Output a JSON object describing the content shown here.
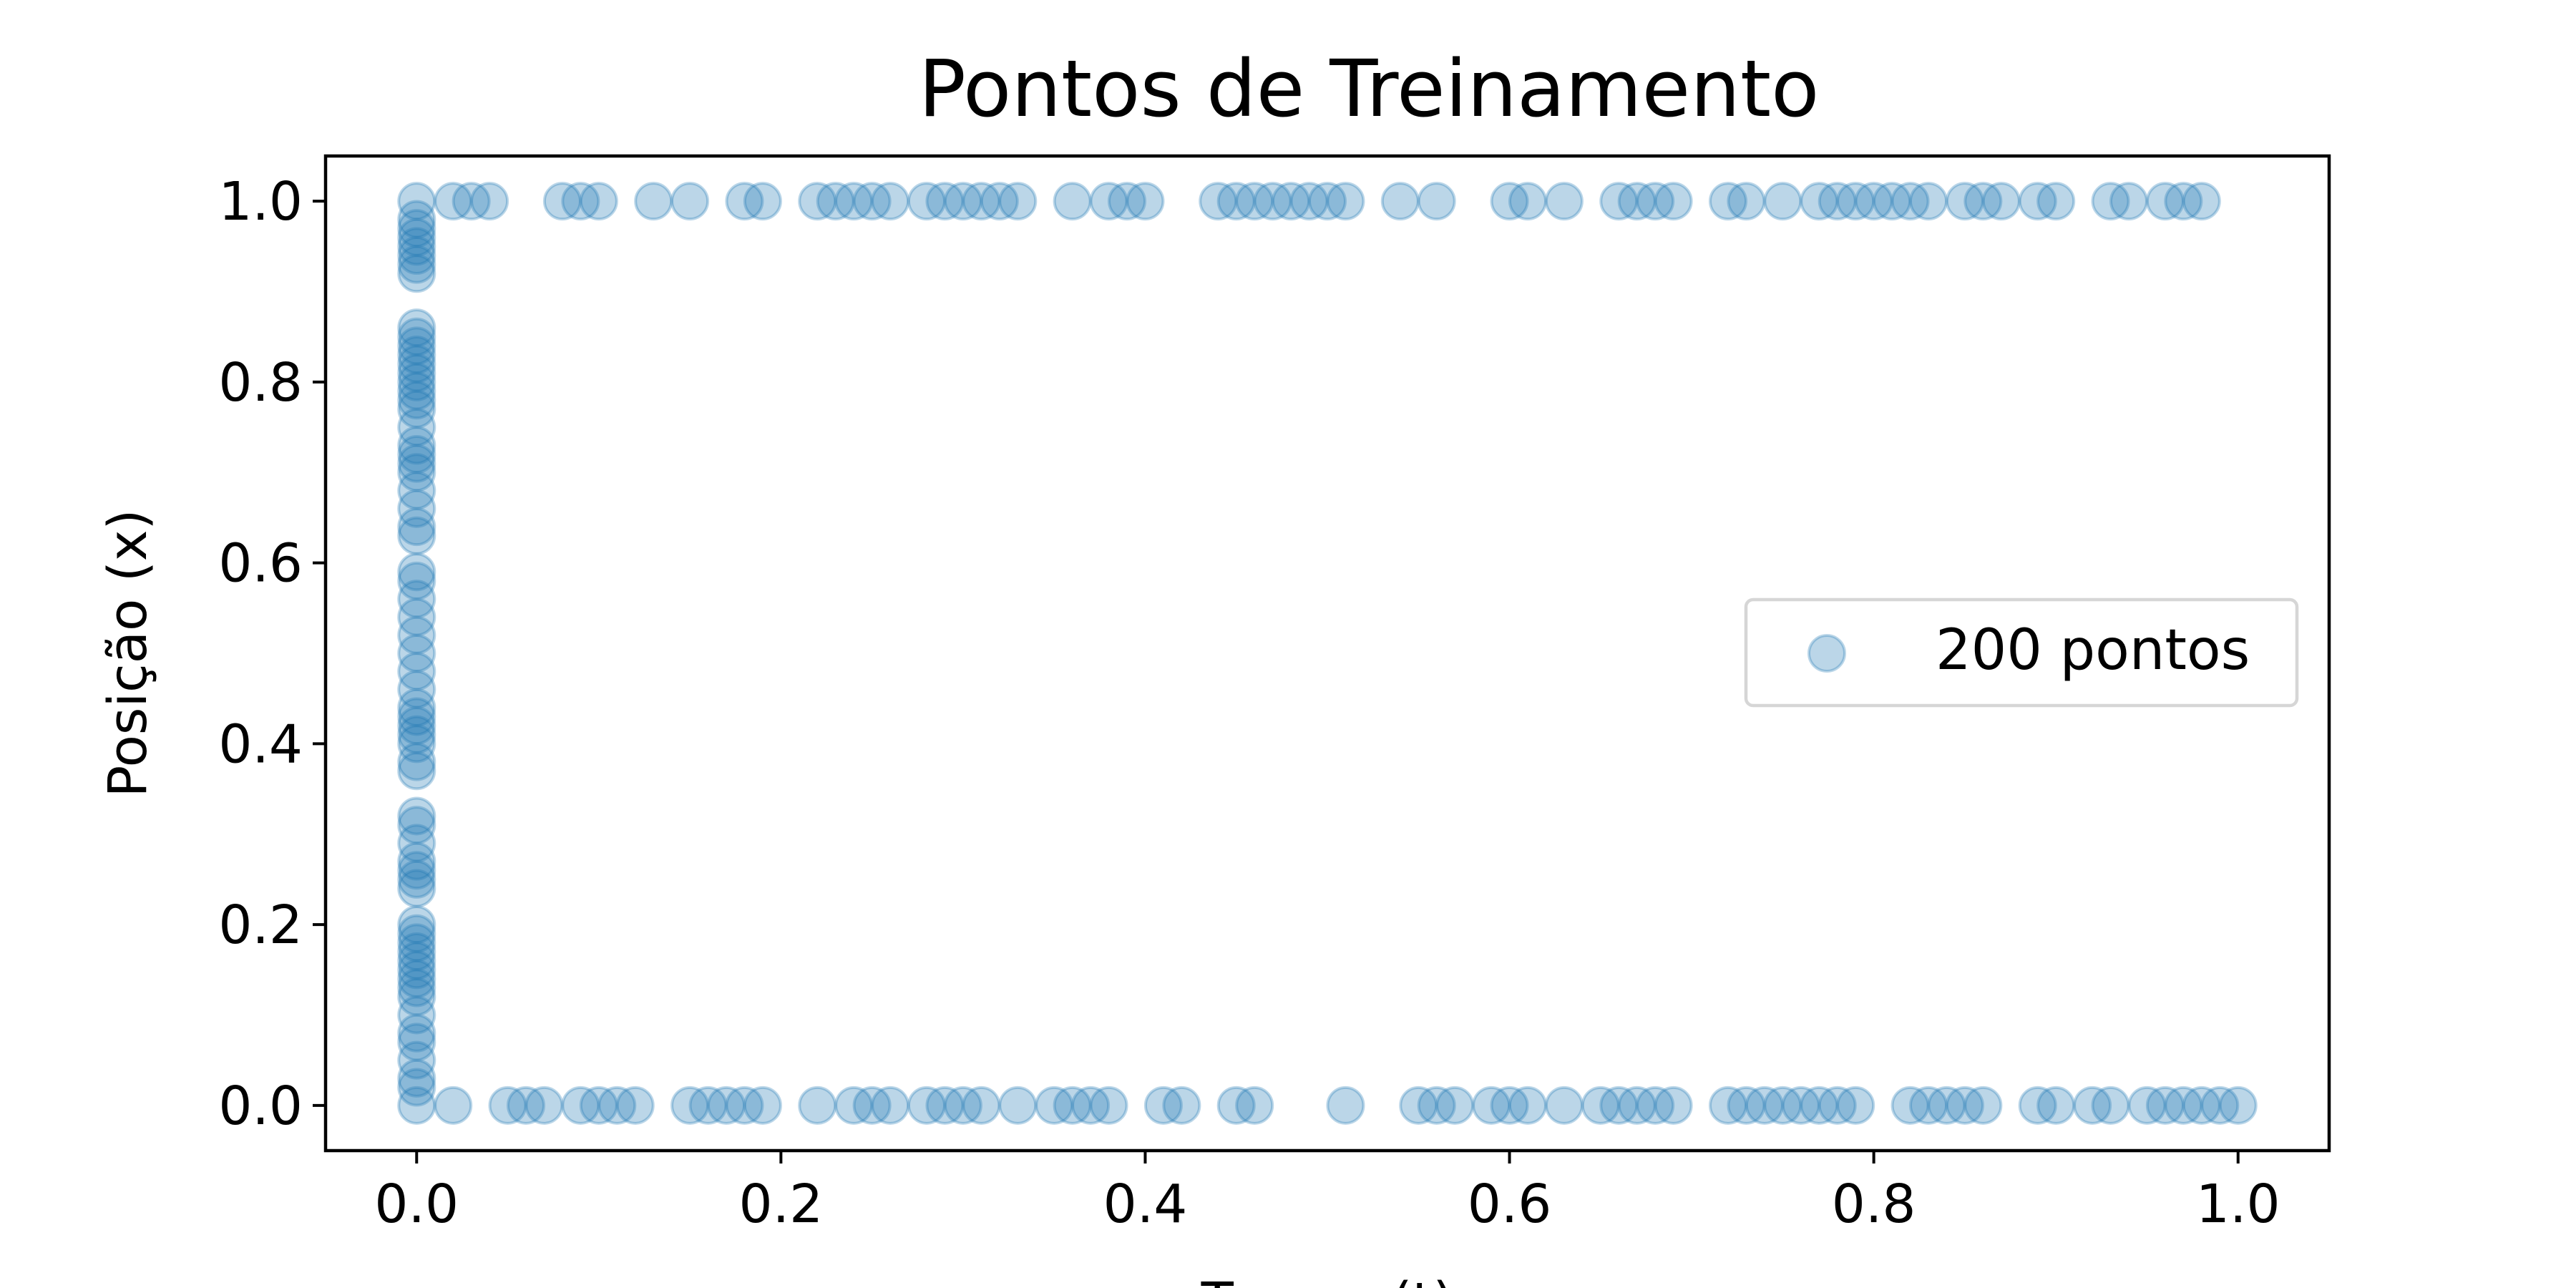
{
  "chart_data": {
    "type": "scatter",
    "title": "Pontos de Treinamento",
    "xlabel": "Tempo (t)",
    "ylabel": "Posição (x)",
    "xlim": [
      -0.05,
      1.05
    ],
    "ylim": [
      -0.05,
      1.05
    ],
    "xticks": [
      0.0,
      0.2,
      0.4,
      0.6,
      0.8,
      1.0
    ],
    "yticks": [
      0.0,
      0.2,
      0.4,
      0.6,
      0.8,
      1.0
    ],
    "xtick_labels": [
      "0.0",
      "0.2",
      "0.4",
      "0.6",
      "0.8",
      "1.0"
    ],
    "ytick_labels": [
      "0.0",
      "0.2",
      "0.4",
      "0.6",
      "0.8",
      "1.0"
    ],
    "grid": false,
    "legend": {
      "placement": "center-right",
      "entries": [
        "200 pontos"
      ]
    },
    "series": [
      {
        "name": "200 pontos",
        "color": "#1f77b4",
        "alpha": 0.3,
        "left_boundary": {
          "t": 0.0,
          "x": [
            0.0,
            0.02,
            0.03,
            0.05,
            0.07,
            0.08,
            0.1,
            0.12,
            0.13,
            0.14,
            0.15,
            0.16,
            0.17,
            0.18,
            0.19,
            0.2,
            0.24,
            0.25,
            0.26,
            0.27,
            0.29,
            0.31,
            0.32,
            0.37,
            0.38,
            0.4,
            0.41,
            0.42,
            0.43,
            0.44,
            0.46,
            0.48,
            0.5,
            0.52,
            0.54,
            0.56,
            0.58,
            0.59,
            0.63,
            0.64,
            0.66,
            0.68,
            0.7,
            0.71,
            0.72,
            0.73,
            0.75,
            0.77,
            0.78,
            0.79,
            0.8,
            0.81,
            0.82,
            0.83,
            0.84,
            0.85,
            0.86,
            0.92,
            0.93,
            0.94,
            0.95,
            0.96,
            0.97,
            0.98,
            1.0
          ]
        },
        "top_boundary": {
          "x": 1.0,
          "t": [
            0.02,
            0.03,
            0.04,
            0.08,
            0.09,
            0.1,
            0.13,
            0.15,
            0.18,
            0.19,
            0.22,
            0.23,
            0.24,
            0.25,
            0.26,
            0.28,
            0.29,
            0.3,
            0.31,
            0.32,
            0.33,
            0.36,
            0.38,
            0.39,
            0.4,
            0.44,
            0.45,
            0.46,
            0.47,
            0.48,
            0.49,
            0.5,
            0.51,
            0.54,
            0.56,
            0.6,
            0.61,
            0.63,
            0.66,
            0.67,
            0.68,
            0.69,
            0.72,
            0.73,
            0.75,
            0.77,
            0.78,
            0.79,
            0.8,
            0.81,
            0.82,
            0.83,
            0.85,
            0.86,
            0.87,
            0.89,
            0.9,
            0.93,
            0.94,
            0.96,
            0.97,
            0.98
          ]
        },
        "bottom_boundary": {
          "x": 0.0,
          "t": [
            0.02,
            0.05,
            0.06,
            0.07,
            0.09,
            0.1,
            0.11,
            0.12,
            0.15,
            0.16,
            0.17,
            0.18,
            0.19,
            0.22,
            0.24,
            0.25,
            0.26,
            0.28,
            0.29,
            0.3,
            0.31,
            0.33,
            0.35,
            0.36,
            0.37,
            0.38,
            0.41,
            0.42,
            0.45,
            0.46,
            0.51,
            0.55,
            0.56,
            0.57,
            0.59,
            0.6,
            0.61,
            0.63,
            0.65,
            0.66,
            0.67,
            0.68,
            0.69,
            0.72,
            0.73,
            0.74,
            0.75,
            0.76,
            0.77,
            0.78,
            0.79,
            0.82,
            0.83,
            0.84,
            0.85,
            0.86,
            0.89,
            0.9,
            0.92,
            0.93,
            0.95,
            0.96,
            0.97,
            0.98,
            0.99,
            1.0
          ]
        }
      }
    ]
  }
}
